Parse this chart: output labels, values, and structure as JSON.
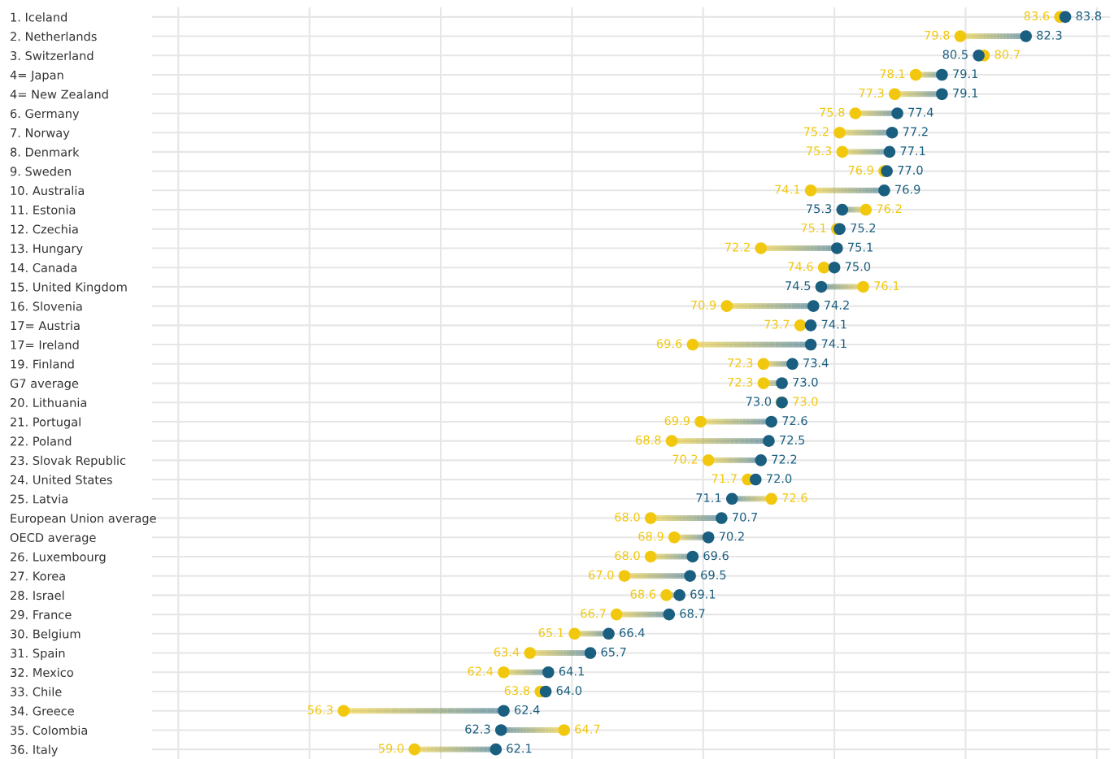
{
  "chart_data": {
    "type": "scatter",
    "orientation": "horizontal",
    "categories": [
      "1. Iceland",
      "2. Netherlands",
      "3. Switzerland",
      "4= Japan",
      "4= New Zealand",
      "6. Germany",
      "7. Norway",
      "8. Denmark",
      "9. Sweden",
      "10. Australia",
      "11. Estonia",
      "12. Czechia",
      "13. Hungary",
      "14. Canada",
      "15. United Kingdom",
      "16. Slovenia",
      "17= Austria",
      "17= Ireland",
      "19. Finland",
      "G7 average",
      "20. Lithuania",
      "21. Portugal",
      "22. Poland",
      "23. Slovak Republic",
      "24. United States",
      "25. Latvia",
      "European Union average",
      "OECD average",
      "26. Luxembourg",
      "27. Korea",
      "28. Israel",
      "29. France",
      "30. Belgium",
      "31. Spain",
      "32. Mexico",
      "33. Chile",
      "34. Greece",
      "35. Colombia",
      "36. Italy"
    ],
    "series": [
      {
        "color": "#f2c80f",
        "values": [
          83.6,
          79.8,
          80.7,
          78.1,
          77.3,
          75.8,
          75.2,
          75.3,
          76.9,
          74.1,
          76.2,
          75.1,
          72.2,
          74.6,
          76.1,
          70.9,
          73.7,
          69.6,
          72.3,
          72.3,
          73.0,
          69.9,
          68.8,
          70.2,
          71.7,
          72.6,
          68.0,
          68.9,
          68.0,
          67.0,
          68.6,
          66.7,
          65.1,
          63.4,
          62.4,
          63.8,
          56.3,
          64.7,
          59.0
        ],
        "value_labels": [
          "83.6",
          "79.8",
          "80.7",
          "78.1",
          "77.3",
          "75.8",
          "75.2",
          "75.3",
          "76.9",
          "74.1",
          "76.2",
          "75.1",
          "72.2",
          "74.6",
          "76.1",
          "70.9",
          "73.7",
          "69.6",
          "72.3",
          "72.3",
          "73.0",
          "69.9",
          "68.8",
          "70.2",
          "71.7",
          "72.6",
          "68.0",
          "68.9",
          "68.0",
          "67.0",
          "68.6",
          "66.7",
          "65.1",
          "63.4",
          "62.4",
          "63.8",
          "56.3",
          "64.7",
          "59.0"
        ]
      },
      {
        "color": "#1b5f80",
        "values": [
          83.8,
          82.3,
          80.5,
          79.1,
          79.1,
          77.4,
          77.2,
          77.1,
          77.0,
          76.9,
          75.3,
          75.2,
          75.1,
          75.0,
          74.5,
          74.2,
          74.1,
          74.1,
          73.4,
          73.0,
          73.0,
          72.6,
          72.5,
          72.2,
          72.0,
          71.1,
          70.7,
          70.2,
          69.6,
          69.5,
          69.1,
          68.7,
          66.4,
          65.7,
          64.1,
          64.0,
          62.4,
          62.3,
          62.1
        ],
        "value_labels": [
          "83.8",
          "82.3",
          "80.5",
          "79.1",
          "79.1",
          "77.4",
          "77.2",
          "77.1",
          "77.0",
          "76.9",
          "75.3",
          "75.2",
          "75.1",
          "75.0",
          "74.5",
          "74.2",
          "74.1",
          "74.1",
          "73.4",
          "73.0",
          "73.0",
          "72.6",
          "72.5",
          "72.2",
          "72.0",
          "71.1",
          "70.7",
          "70.2",
          "69.6",
          "69.5",
          "69.1",
          "68.7",
          "66.4",
          "65.7",
          "64.1",
          "64.0",
          "62.4",
          "62.3",
          "62.1"
        ]
      }
    ],
    "xlim": [
      49,
      85.5
    ],
    "xticks": [
      {
        "value": 50,
        "label": null
      },
      {
        "value": 55,
        "label": null
      },
      {
        "value": 60,
        "label": null
      },
      {
        "value": 65,
        "label": null
      },
      {
        "value": 70,
        "label": null
      },
      {
        "value": 75,
        "label": null
      },
      {
        "value": 80,
        "label": null
      },
      {
        "value": 85,
        "label": null
      }
    ],
    "tick_labels": "y",
    "grid": true,
    "marker": "circle"
  }
}
